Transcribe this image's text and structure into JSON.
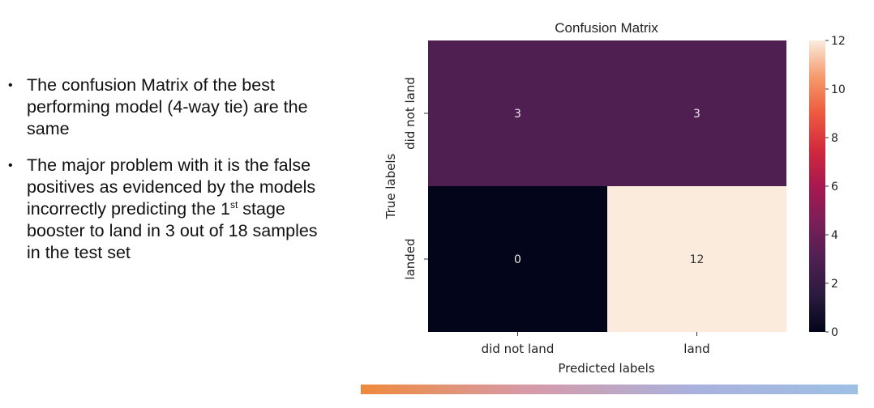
{
  "bullets": [
    {
      "text": "The confusion Matrix of the best performing model (4-way tie) are the same"
    },
    {
      "pre": "The major problem with it is the false positives as evidenced by the models incorrectly predicting the 1",
      "sup": "st",
      "post": " stage booster to land in 3 out of 18 samples in the test set"
    }
  ],
  "colors": {
    "text": "#111111",
    "bar_gradient": [
      "#ef8a3c",
      "#d79aa8",
      "#a9b1dc",
      "#9ec0e4"
    ]
  },
  "chart_data": {
    "type": "heatmap",
    "title": "Confusion Matrix",
    "xlabel": "Predicted labels",
    "ylabel": "True labels",
    "x_categories": [
      "did not land",
      "land"
    ],
    "y_categories": [
      "did not land",
      "landed"
    ],
    "values": [
      [
        3,
        3
      ],
      [
        0,
        12
      ]
    ],
    "colorbar": {
      "min": 0,
      "max": 12,
      "ticks": [
        "0",
        "2",
        "4",
        "6",
        "8",
        "10",
        "12"
      ]
    },
    "colormap": "rocket"
  }
}
